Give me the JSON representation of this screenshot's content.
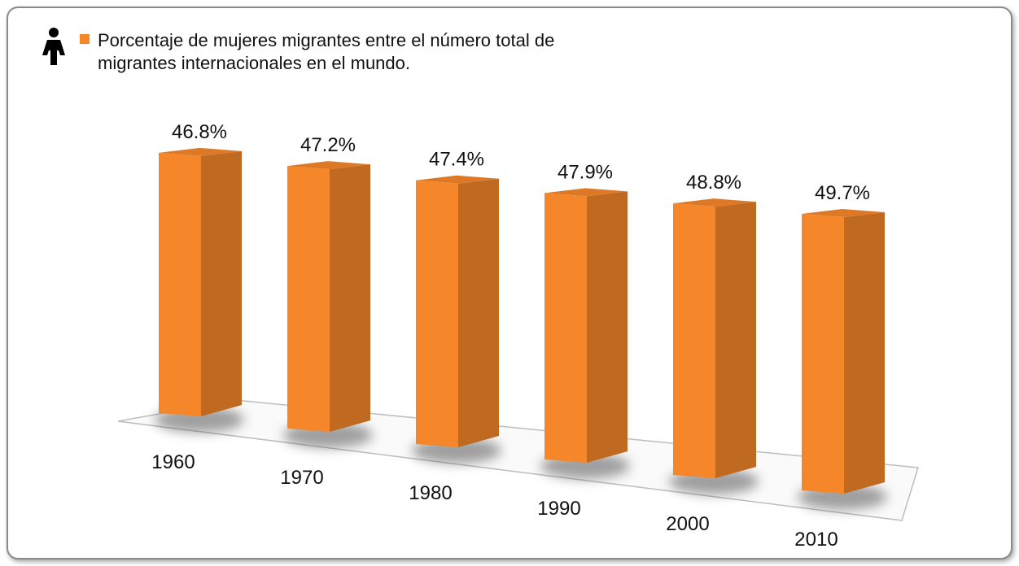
{
  "chart_data": {
    "type": "bar",
    "categories": [
      "1960",
      "1970",
      "1980",
      "1990",
      "2000",
      "2010"
    ],
    "series": [
      {
        "name": "Porcentaje de mujeres migrantes entre el número total de migrantes internacionales en el mundo.",
        "color": "#f5862a",
        "values": [
          46.8,
          47.2,
          47.4,
          47.9,
          48.8,
          49.7
        ],
        "value_labels": [
          "46.8%",
          "47.2%",
          "47.4%",
          "47.9%",
          "48.8%",
          "49.7%"
        ]
      }
    ]
  }
}
